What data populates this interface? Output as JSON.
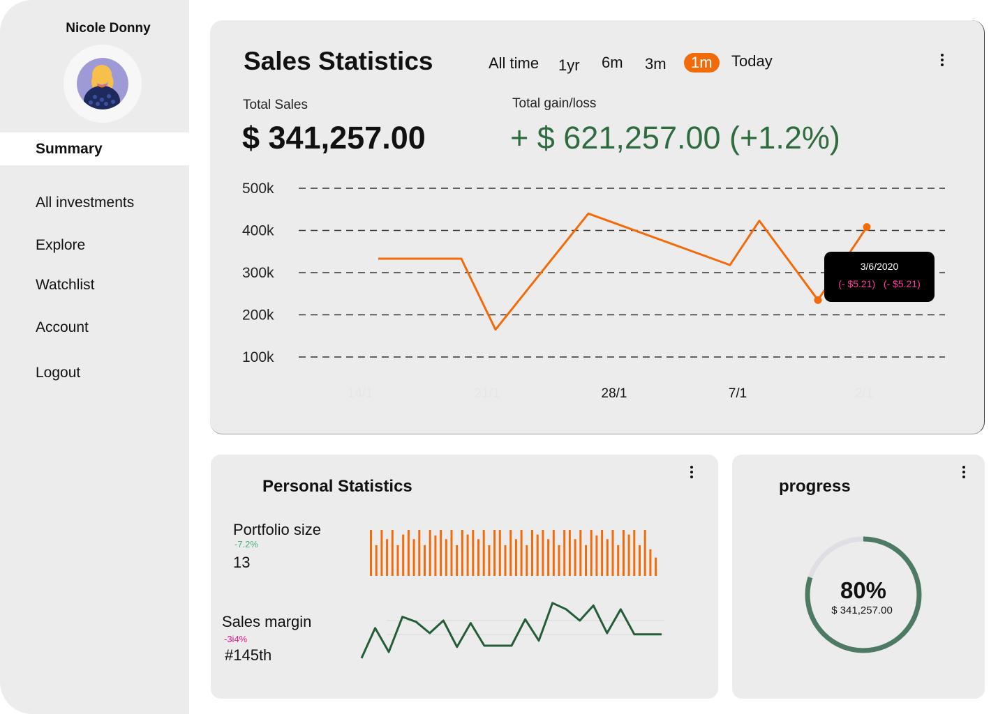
{
  "sidebar": {
    "user_name": "Nicole Donny",
    "active_item": "Summary",
    "items": [
      "All investments",
      "Explore",
      "Watchlist",
      "Account",
      "Logout"
    ]
  },
  "sales": {
    "title": "Sales Statistics",
    "ranges": [
      "All time",
      "1yr",
      "6m",
      "3m",
      "1m",
      "Today"
    ],
    "active_range": "1m",
    "total_sales_label": "Total Sales",
    "total_sales_value": "$ 341,257.00",
    "gain_label": "Total gain/loss",
    "gain_value": "+ $ 621,257.00 (+1.2%)",
    "tooltip": {
      "date": "3/6/2020",
      "val1": "(- $5.21)",
      "val2": "(- $5.21)"
    }
  },
  "chart_data": [
    {
      "type": "line",
      "y_ticks": [
        "500k",
        "400k",
        "300k",
        "200k",
        "100k"
      ],
      "y_tick_values": [
        500000,
        400000,
        300000,
        200000,
        100000
      ],
      "x_tick_labels": [
        "14/1",
        "21/1",
        "28/1",
        "7/1",
        "2/1"
      ],
      "x_tick_faded": [
        true,
        true,
        false,
        false,
        true
      ],
      "ylim": [
        100000,
        500000
      ],
      "grid": "dashed horizontal",
      "series": [
        {
          "color": "#f26b0a",
          "points": [
            [
              0.0,
              333000
            ],
            [
              0.17,
              333000
            ],
            [
              0.24,
              165000
            ],
            [
              0.43,
              440000
            ],
            [
              0.72,
              318000
            ],
            [
              0.78,
              423000
            ],
            [
              0.9,
              235000
            ],
            [
              1.0,
              408000
            ]
          ],
          "markers": [
            6,
            7
          ]
        }
      ]
    },
    {
      "type": "bar",
      "name": "Portfolio size",
      "color": "#f26b0a",
      "values": [
        100,
        67,
        100,
        80,
        100,
        67,
        90,
        100,
        80,
        100,
        67,
        100,
        88,
        100,
        80,
        100,
        67,
        100,
        90,
        100,
        80,
        100,
        67,
        100,
        100,
        67,
        100,
        80,
        100,
        67,
        100,
        90,
        100,
        80,
        100,
        67,
        100,
        100,
        80,
        100,
        67,
        100,
        88,
        100,
        80,
        100,
        67,
        100,
        90,
        100,
        67,
        100,
        58,
        40
      ]
    },
    {
      "type": "line",
      "name": "Sales margin",
      "color": "#235c36",
      "values": [
        0,
        48,
        10,
        66,
        58,
        40,
        60,
        18,
        56,
        20,
        20,
        20,
        62,
        28,
        88,
        78,
        60,
        84,
        40,
        78,
        38,
        38,
        38
      ]
    }
  ],
  "personal": {
    "title": "Personal Statistics",
    "portfolio_label": "Portfolio size",
    "portfolio_change": "-7.2%",
    "portfolio_value": "13",
    "margin_label": "Sales margin",
    "margin_change": "-3i4%",
    "margin_value": "#145th"
  },
  "progress": {
    "title": "progress",
    "percent_text": "80%",
    "percent": 0.8,
    "amount": "$ 341,257.00"
  },
  "colors": {
    "accent": "#f26b0a",
    "gain": "#2e6b3f",
    "margin_line": "#235c36",
    "ring": "#4d7a62",
    "ring_track": "#e0dde4",
    "negative": "#e6168c",
    "positive": "#4caf7a"
  }
}
